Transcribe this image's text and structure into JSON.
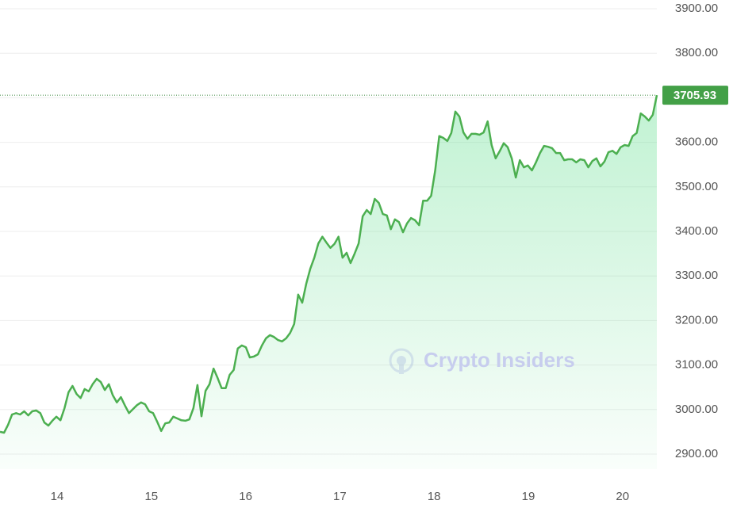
{
  "chart_data": {
    "type": "line",
    "watermark": "Crypto Insiders",
    "series": [
      {
        "color": "#4caf50",
        "values": [
          2950,
          2948,
          2966,
          2989,
          2992,
          2989,
          2996,
          2987,
          2996,
          2998,
          2992,
          2971,
          2964,
          2975,
          2984,
          2976,
          3003,
          3039,
          3053,
          3035,
          3026,
          3046,
          3041,
          3057,
          3069,
          3062,
          3044,
          3057,
          3032,
          3016,
          3028,
          3009,
          2992,
          3001,
          3010,
          3016,
          3012,
          2996,
          2992,
          2973,
          2952,
          2969,
          2971,
          2984,
          2980,
          2976,
          2975,
          2978,
          3003,
          3055,
          2985,
          3042,
          3057,
          3092,
          3071,
          3048,
          3048,
          3078,
          3089,
          3137,
          3144,
          3140,
          3117,
          3119,
          3124,
          3144,
          3160,
          3167,
          3163,
          3156,
          3153,
          3160,
          3172,
          3192,
          3258,
          3240,
          3283,
          3316,
          3341,
          3373,
          3388,
          3375,
          3363,
          3372,
          3388,
          3341,
          3352,
          3329,
          3350,
          3373,
          3434,
          3448,
          3439,
          3473,
          3464,
          3439,
          3436,
          3405,
          3427,
          3421,
          3398,
          3418,
          3430,
          3425,
          3414,
          3469,
          3469,
          3480,
          3537,
          3614,
          3610,
          3603,
          3621,
          3669,
          3658,
          3622,
          3608,
          3619,
          3619,
          3617,
          3622,
          3647,
          3594,
          3564,
          3580,
          3598,
          3589,
          3564,
          3521,
          3560,
          3544,
          3548,
          3537,
          3555,
          3576,
          3592,
          3590,
          3587,
          3576,
          3576,
          3560,
          3562,
          3562,
          3555,
          3562,
          3560,
          3544,
          3558,
          3564,
          3546,
          3557,
          3578,
          3581,
          3574,
          3589,
          3594,
          3592,
          3614,
          3621,
          3665,
          3658,
          3649,
          3662,
          3705.93
        ]
      }
    ],
    "last_price": 3705.93,
    "xlim": [
      13.394,
      20.364
    ],
    "xticks": [
      14,
      15,
      16,
      17,
      18,
      19,
      20
    ],
    "ylim": [
      2900,
      3900
    ],
    "yticks": [
      {
        "value": 2900,
        "label": "2900.00"
      },
      {
        "value": 3000,
        "label": "3000.00"
      },
      {
        "value": 3100,
        "label": "3100.00"
      },
      {
        "value": 3200,
        "label": "3200.00"
      },
      {
        "value": 3300,
        "label": "3300.00"
      },
      {
        "value": 3400,
        "label": "3400.00"
      },
      {
        "value": 3500,
        "label": "3500.00"
      },
      {
        "value": 3600,
        "label": "3600.00"
      },
      {
        "value": 3700,
        "label": "3700.00"
      },
      {
        "value": 3800,
        "label": "3800.00"
      },
      {
        "value": 3900,
        "label": "3900.00"
      }
    ],
    "grid": true
  }
}
